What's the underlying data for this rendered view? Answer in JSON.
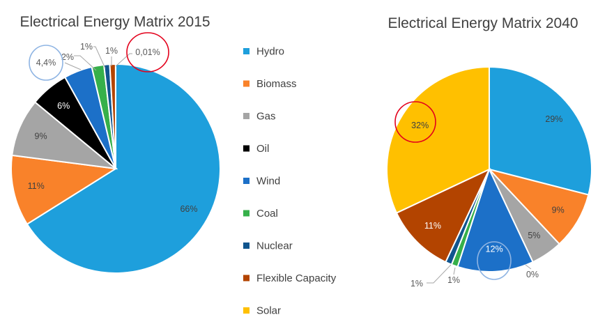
{
  "colors": {
    "Hydro": "#1e9fdc",
    "Biomass": "#f9822a",
    "Gas": "#a5a5a5",
    "Oil": "#000000",
    "Wind": "#1c70c8",
    "Coal": "#36b04a",
    "Nuclear": "#10558e",
    "Flexible Capacity": "#b34400",
    "Solar": "#ffc000"
  },
  "chart_data": [
    {
      "type": "pie",
      "title": "Electrical Energy Matrix 2015",
      "legend_position": "right",
      "slices": [
        {
          "name": "Hydro",
          "label": "66%",
          "value": 66.5
        },
        {
          "name": "Biomass",
          "label": "11%",
          "value": 11
        },
        {
          "name": "Gas",
          "label": "9%",
          "value": 9
        },
        {
          "name": "Oil",
          "label": "6%",
          "value": 6
        },
        {
          "name": "Wind",
          "label": "4,4%",
          "value": 4.4
        },
        {
          "name": "Coal",
          "label": "2%",
          "value": 1.9
        },
        {
          "name": "Nuclear",
          "label": "1%",
          "value": 0.9
        },
        {
          "name": "Flexible Capacity",
          "label": "1%",
          "value": 0.9
        },
        {
          "name": "Solar",
          "label": "0,01%",
          "value": 0.01
        }
      ]
    },
    {
      "type": "pie",
      "title": "Electrical Energy Matrix 2040",
      "slices": [
        {
          "name": "Hydro",
          "label": "29%",
          "value": 29
        },
        {
          "name": "Biomass",
          "label": "9%",
          "value": 9
        },
        {
          "name": "Gas",
          "label": "5%",
          "value": 5
        },
        {
          "name": "Oil",
          "label": "0%",
          "value": 0
        },
        {
          "name": "Wind",
          "label": "12%",
          "value": 12
        },
        {
          "name": "Coal",
          "label": "1%",
          "value": 1
        },
        {
          "name": "Nuclear",
          "label": "1%",
          "value": 1
        },
        {
          "name": "Flexible Capacity",
          "label": "11%",
          "value": 11
        },
        {
          "name": "Solar",
          "label": "32%",
          "value": 32
        }
      ]
    }
  ],
  "legend": [
    "Hydro",
    "Biomass",
    "Gas",
    "Oil",
    "Wind",
    "Coal",
    "Nuclear",
    "Flexible Capacity",
    "Solar"
  ],
  "annotations": [
    {
      "chart": 0,
      "slice": "Wind",
      "color": "#8eb4e3"
    },
    {
      "chart": 0,
      "slice": "Solar",
      "color": "#e3001b"
    },
    {
      "chart": 1,
      "slice": "Wind",
      "color": "#8eb4e3"
    },
    {
      "chart": 1,
      "slice": "Solar",
      "color": "#e3001b"
    }
  ]
}
